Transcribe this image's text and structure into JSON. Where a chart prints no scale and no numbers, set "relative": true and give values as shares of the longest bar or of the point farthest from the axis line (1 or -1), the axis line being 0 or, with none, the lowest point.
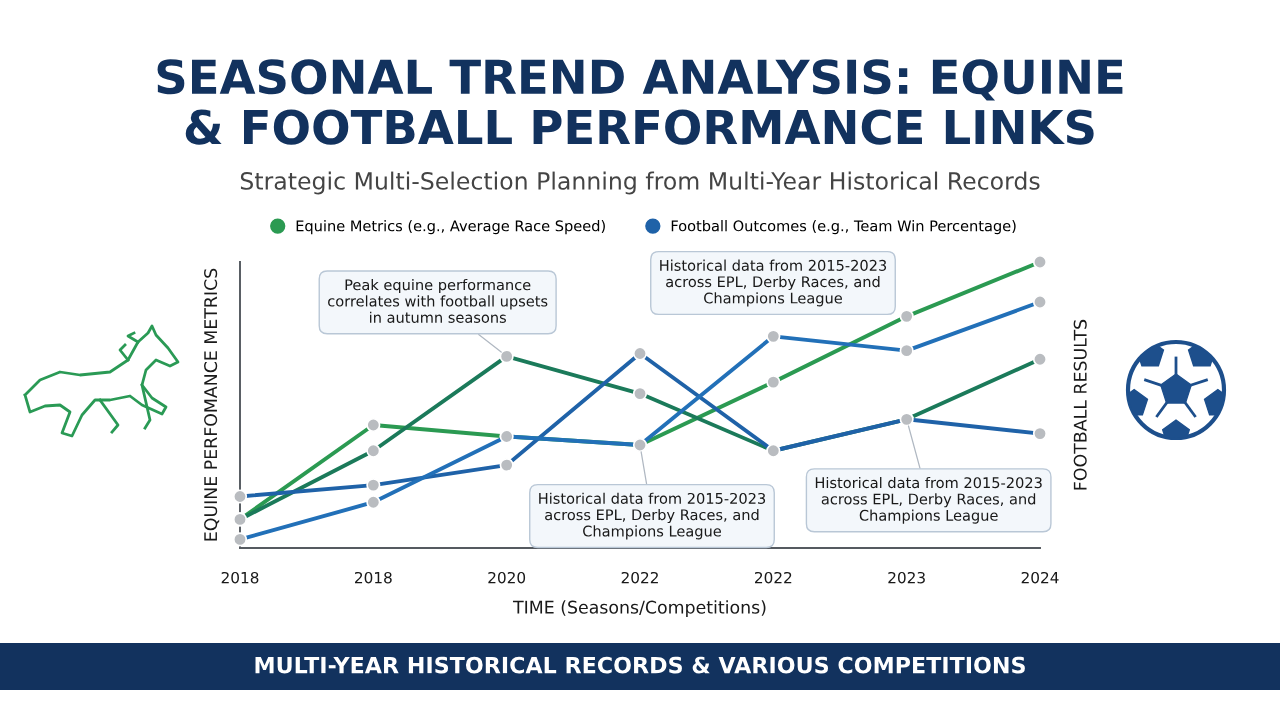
{
  "chart_data": {
    "type": "line",
    "title": "SEASONAL TREND ANALYSIS: EQUINE\n& FOOTBALL PERFORMANCE LINKS",
    "subtitle": "Strategic Multi-Selection Planning from Multi-Year Historical Records",
    "xlabel": "TIME (Seasons/Competitions)",
    "ylabel": "EQUINE PERFOMANCE METRICS",
    "y2label": "FOOTBALL RESULTS",
    "categories": [
      "2018",
      "2018",
      "2020",
      "2022",
      "2022",
      "2023",
      "2024"
    ],
    "relative": true,
    "series": [
      {
        "name": "Equine Metrics (e.g., Average Race Speed)",
        "color": "#2b9a52",
        "values": [
          0.1,
          0.43,
          0.39,
          0.36,
          0.58,
          0.81,
          1.0
        ]
      },
      {
        "color": "#1b7a5a",
        "values": [
          0.1,
          0.34,
          0.67,
          0.54,
          0.34,
          0.45,
          0.66
        ]
      },
      {
        "name": "Football Outcomes (e.g., Team Win Percentage)",
        "color": "#1f62a8",
        "values": [
          0.18,
          0.22,
          0.29,
          0.68,
          0.34,
          0.45,
          0.4
        ]
      },
      {
        "color": "#2270b8",
        "values": [
          0.03,
          0.16,
          0.39,
          0.36,
          0.74,
          0.69,
          0.86
        ]
      }
    ],
    "marker": "circle",
    "line_style": "solid",
    "legend": "top",
    "annotations": [
      {
        "text": "Peak equine performance\ncorrelates with football upsets\nin autumn seasons",
        "x": "2020",
        "y": 0.67
      },
      "Historical data from 2015-2023\nacross EPL, Derby Races, and\nChampions League",
      {
        "text": "Historical data from 2015-2023\nacross EPL, Derby Races, and\nChampions League",
        "x": "2022",
        "y": 0.36
      },
      {
        "text": "Historical data from 2015-2023\nacross EPL, Derby Races, and\nChampions League",
        "x": "2023",
        "y": 0.45
      },
      "MULTI-YEAR HISTORICAL RECORDS & VARIOUS COMPETITIONS"
    ]
  }
}
